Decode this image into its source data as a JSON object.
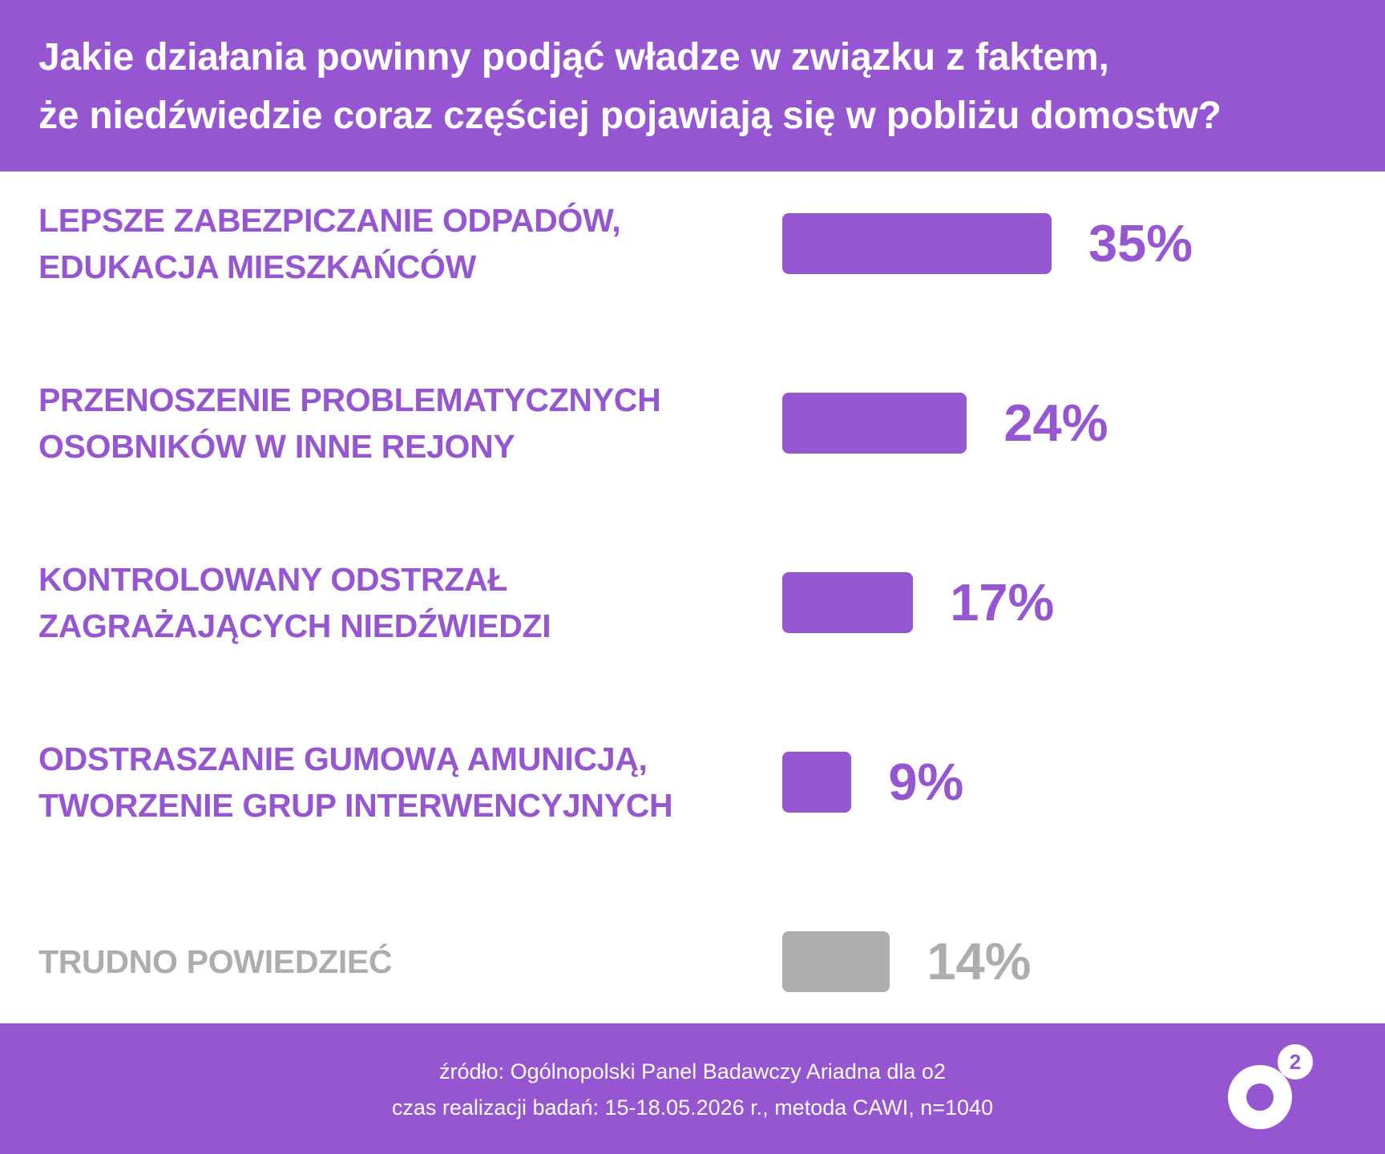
{
  "title": {
    "line1": "Jakie działania powinny podjąć władze w związku z faktem,",
    "line2": "że niedźwiedzie coraz częściej pojawiają się w pobliżu domostw?"
  },
  "colors": {
    "accent": "#9656D2",
    "neutral": "#ADADAD",
    "background": "#FFFFFF"
  },
  "chart_data": {
    "type": "bar",
    "orientation": "horizontal",
    "title": "Jakie działania powinny podjąć władze w związku z faktem, że niedźwiedzie coraz częściej pojawiają się w pobliżu domostw?",
    "unit": "%",
    "categories": [
      [
        "LEPSZE ZABEZPICZANIE ODPADÓW,",
        "EDUKACJA MIESZKAŃCÓW"
      ],
      [
        "PRZENOSZENIE PROBLEMATYCZNYCH",
        "OSOBNIKÓW W INNE REJONY"
      ],
      [
        "KONTROLOWANY ODSTRZAŁ",
        "ZAGRAŻAJĄCYCH NIEDŹWIEDZI"
      ],
      [
        "ODSTRASZANIE GUMOWĄ AMUNICJĄ,",
        "TWORZENIE GRUP INTERWENCYJNYCH"
      ],
      [
        "TRUDNO POWIEDZIEĆ"
      ]
    ],
    "values": [
      35,
      24,
      17,
      9,
      14
    ],
    "value_labels": [
      "35%",
      "24%",
      "17%",
      "9%",
      "14%"
    ],
    "bar_colors": [
      "#9656D2",
      "#9656D2",
      "#9656D2",
      "#9656D2",
      "#ADADAD"
    ],
    "grid": false,
    "legend": "none"
  },
  "footer": {
    "source": "źródło: Ogólnopolski Panel Badawczy Ariadna dla o2",
    "details": "czas realizacji badań: 15-18.05.2026 r., metoda CAWI, n=1040",
    "logo_icon": "o2-logo-icon",
    "logo_text": "o2"
  }
}
